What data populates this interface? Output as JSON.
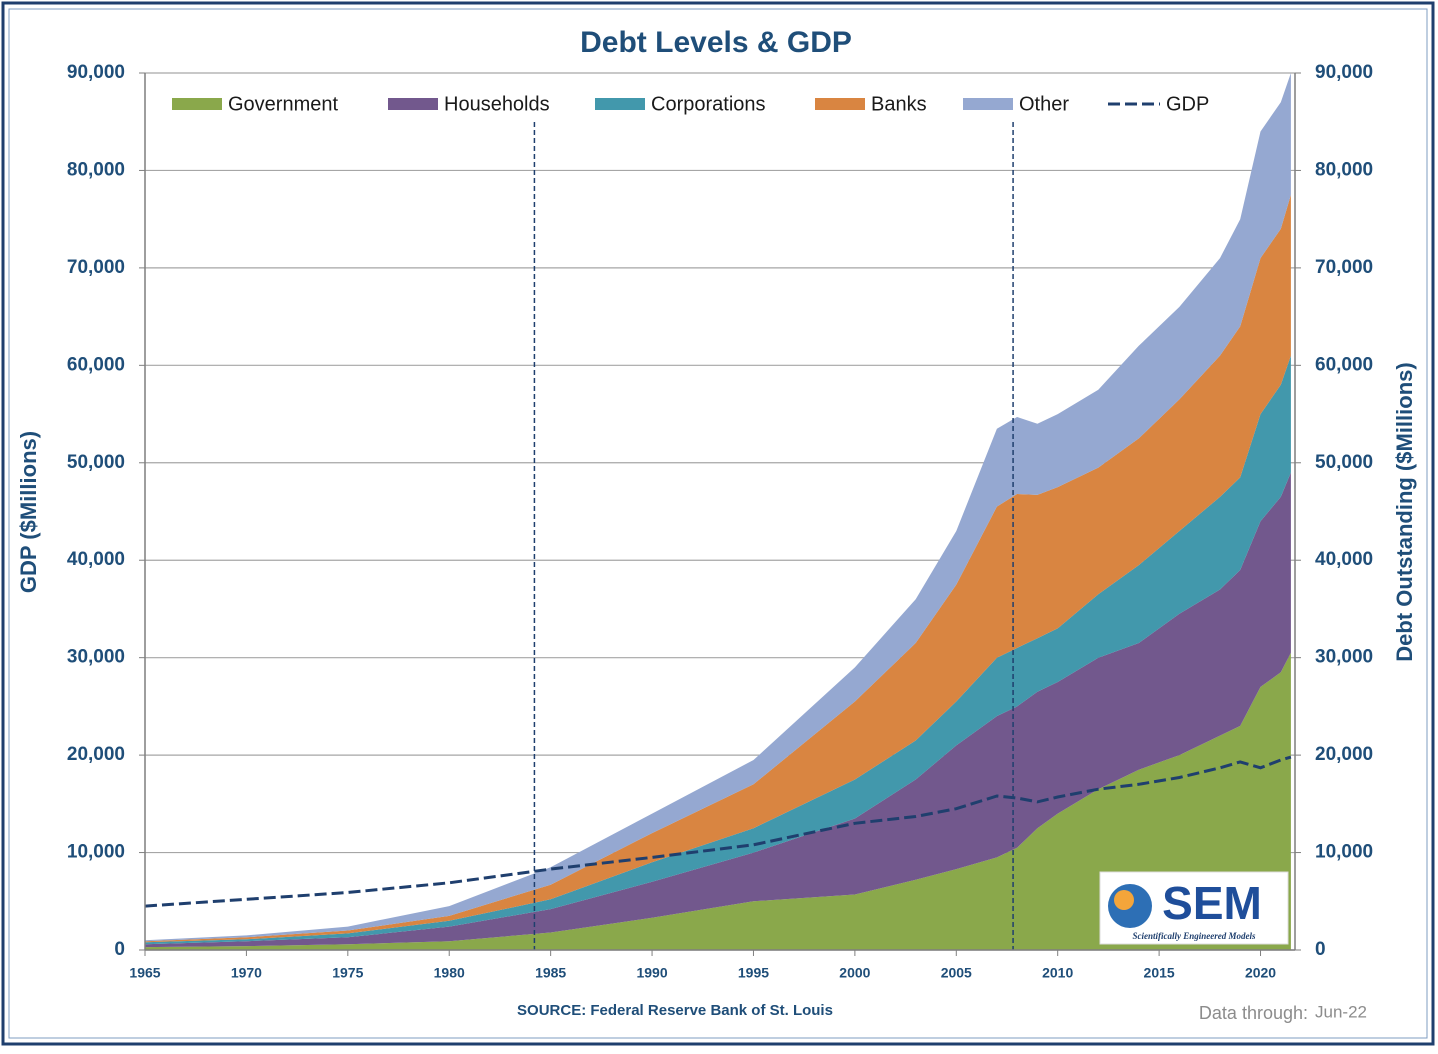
{
  "chart_data": {
    "type": "stacked-area",
    "title": "Debt Levels & GDP",
    "y_label": "GDP ($Millions)",
    "y2_label": "Debt Outstanding ($Millions)",
    "source": "SOURCE: Federal Reserve Bank of St. Louis",
    "data_through_label": "Data through:",
    "data_through": "Jun-22",
    "logo": {
      "title": "SEM",
      "subtitle": "Scientifically Engineered Models"
    },
    "x": [
      1965,
      1970,
      1975,
      1980,
      1985,
      1990,
      1995,
      2000,
      2003,
      2005,
      2007,
      2008,
      2009,
      2010,
      2012,
      2014,
      2016,
      2018,
      2019,
      2020,
      2021,
      2021.5
    ],
    "xlim": [
      1965,
      2021.7
    ],
    "xticks": [
      1965,
      1970,
      1975,
      1980,
      1985,
      1990,
      1995,
      2000,
      2005,
      2010,
      2015,
      2020
    ],
    "ylim": [
      0,
      90000
    ],
    "yticks": [
      0,
      {
        "value": 10000,
        "label": "10,000"
      },
      {
        "value": 20000,
        "label": "20,000"
      },
      {
        "value": 30000,
        "label": "30,000"
      },
      {
        "value": 40000,
        "label": "40,000"
      },
      {
        "value": 50000,
        "label": "50,000"
      },
      {
        "value": 60000,
        "label": "60,000"
      },
      {
        "value": 70000,
        "label": "70,000"
      },
      {
        "value": 80000,
        "label": "80,000"
      },
      {
        "value": 90000,
        "label": "90,000"
      }
    ],
    "y2lim": [
      0,
      90000
    ],
    "y2ticks": [
      0,
      {
        "value": 10000,
        "label": "10,000"
      },
      {
        "value": 20000,
        "label": "20,000"
      },
      {
        "value": 30000,
        "label": "30,000"
      },
      {
        "value": 40000,
        "label": "40,000"
      },
      {
        "value": 50000,
        "label": "50,000"
      },
      {
        "value": 60000,
        "label": "60,000"
      },
      {
        "value": 70000,
        "label": "70,000"
      },
      {
        "value": 80000,
        "label": "80,000"
      },
      {
        "value": 90000,
        "label": "90,000"
      }
    ],
    "grid": true,
    "reference_lines_x": [
      1984.2,
      2007.8
    ],
    "series": [
      {
        "name": "Government",
        "color": "#8aa84b",
        "axis": "y2",
        "values": [
          300,
          400,
          600,
          900,
          1800,
          3300,
          5000,
          5700,
          7200,
          8300,
          9500,
          10500,
          12500,
          14000,
          16500,
          18500,
          20000,
          22000,
          23000,
          27000,
          28500,
          30500
        ]
      },
      {
        "name": "Households",
        "color": "#72588d",
        "axis": "y2",
        "values": [
          300,
          500,
          700,
          1500,
          2400,
          3700,
          5000,
          7800,
          10300,
          12700,
          14500,
          14500,
          14000,
          13500,
          13500,
          13000,
          14500,
          15000,
          16000,
          17000,
          18000,
          18500
        ]
      },
      {
        "name": "Corporations",
        "color": "#4298ac",
        "axis": "y2",
        "values": [
          200,
          200,
          400,
          600,
          1000,
          2000,
          2500,
          4000,
          4000,
          4500,
          6000,
          6000,
          5500,
          5500,
          6500,
          8000,
          8500,
          9500,
          9500,
          11000,
          11500,
          12000
        ]
      },
      {
        "name": "Banks",
        "color": "#d98541",
        "axis": "y2",
        "values": [
          100,
          200,
          300,
          500,
          1500,
          3000,
          4500,
          8000,
          10000,
          12000,
          15500,
          15800,
          14700,
          14500,
          13000,
          13000,
          13500,
          14500,
          15500,
          16000,
          16000,
          16500
        ]
      },
      {
        "name": "Other",
        "color": "#95a8d1",
        "axis": "y2",
        "values": [
          100,
          200,
          400,
          1000,
          1800,
          2000,
          2500,
          3500,
          4500,
          5500,
          8000,
          7900,
          7300,
          7500,
          8000,
          9500,
          9500,
          10000,
          11000,
          13000,
          13000,
          12500
        ]
      },
      {
        "name": "GDP",
        "color": "#1f3f6e",
        "line": true,
        "values": [
          4500,
          5200,
          5900,
          6900,
          8300,
          9500,
          10800,
          13000,
          13700,
          14500,
          15800,
          15600,
          15200,
          15700,
          16500,
          17000,
          17700,
          18700,
          19300,
          18700,
          19500,
          19800
        ]
      }
    ]
  }
}
